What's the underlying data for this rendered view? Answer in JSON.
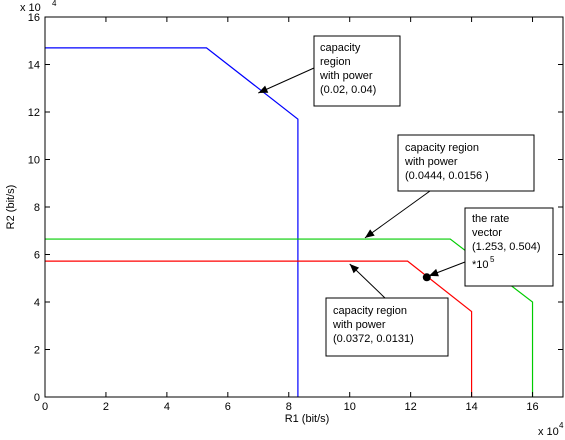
{
  "chart_data": {
    "type": "line",
    "xlabel": "R1 (bit/s)",
    "ylabel": "R2 (bit/s)",
    "x_multiplier": "x 10",
    "y_multiplier": "x 10",
    "multiplier_exponent": "4",
    "xlim": [
      0,
      17
    ],
    "ylim": [
      0,
      16
    ],
    "xticks": [
      0,
      2,
      4,
      6,
      8,
      10,
      12,
      14,
      16
    ],
    "yticks": [
      0,
      2,
      4,
      6,
      8,
      10,
      12,
      14,
      16
    ],
    "grid": false,
    "series": [
      {
        "color": "#0000ff",
        "x": [
          0,
          5.3,
          8.3,
          8.3
        ],
        "y": [
          14.7,
          14.7,
          11.7,
          0
        ]
      },
      {
        "color": "#00cc00",
        "x": [
          0,
          13.3,
          16.0,
          16.0
        ],
        "y": [
          6.65,
          6.65,
          4.0,
          0
        ]
      },
      {
        "color": "#ff0000",
        "x": [
          0,
          11.9,
          14.0,
          14.0
        ],
        "y": [
          5.72,
          5.72,
          3.6,
          0
        ]
      }
    ],
    "point": {
      "x": 12.53,
      "y": 5.04
    },
    "annotations": [
      {
        "lines": [
          "capacity",
          "region",
          "with power",
          "(0.02, 0.04)"
        ],
        "arrow_to": {
          "x": 7.0,
          "y": 12.8
        }
      },
      {
        "lines": [
          "capacity region",
          "with power",
          "(0.0444, 0.0156 )"
        ],
        "arrow_to": {
          "x": 10.5,
          "y": 6.7
        }
      },
      {
        "lines": [
          "the rate",
          "vector",
          "(1.253, 0.504)",
          "*10"
        ],
        "superscript": "5",
        "arrow_to": {
          "x": 12.6,
          "y": 5.1
        }
      },
      {
        "lines": [
          "capacity region",
          "with power",
          "(0.0372, 0.0131)"
        ],
        "arrow_to": {
          "x": 10.0,
          "y": 5.6
        }
      }
    ]
  }
}
